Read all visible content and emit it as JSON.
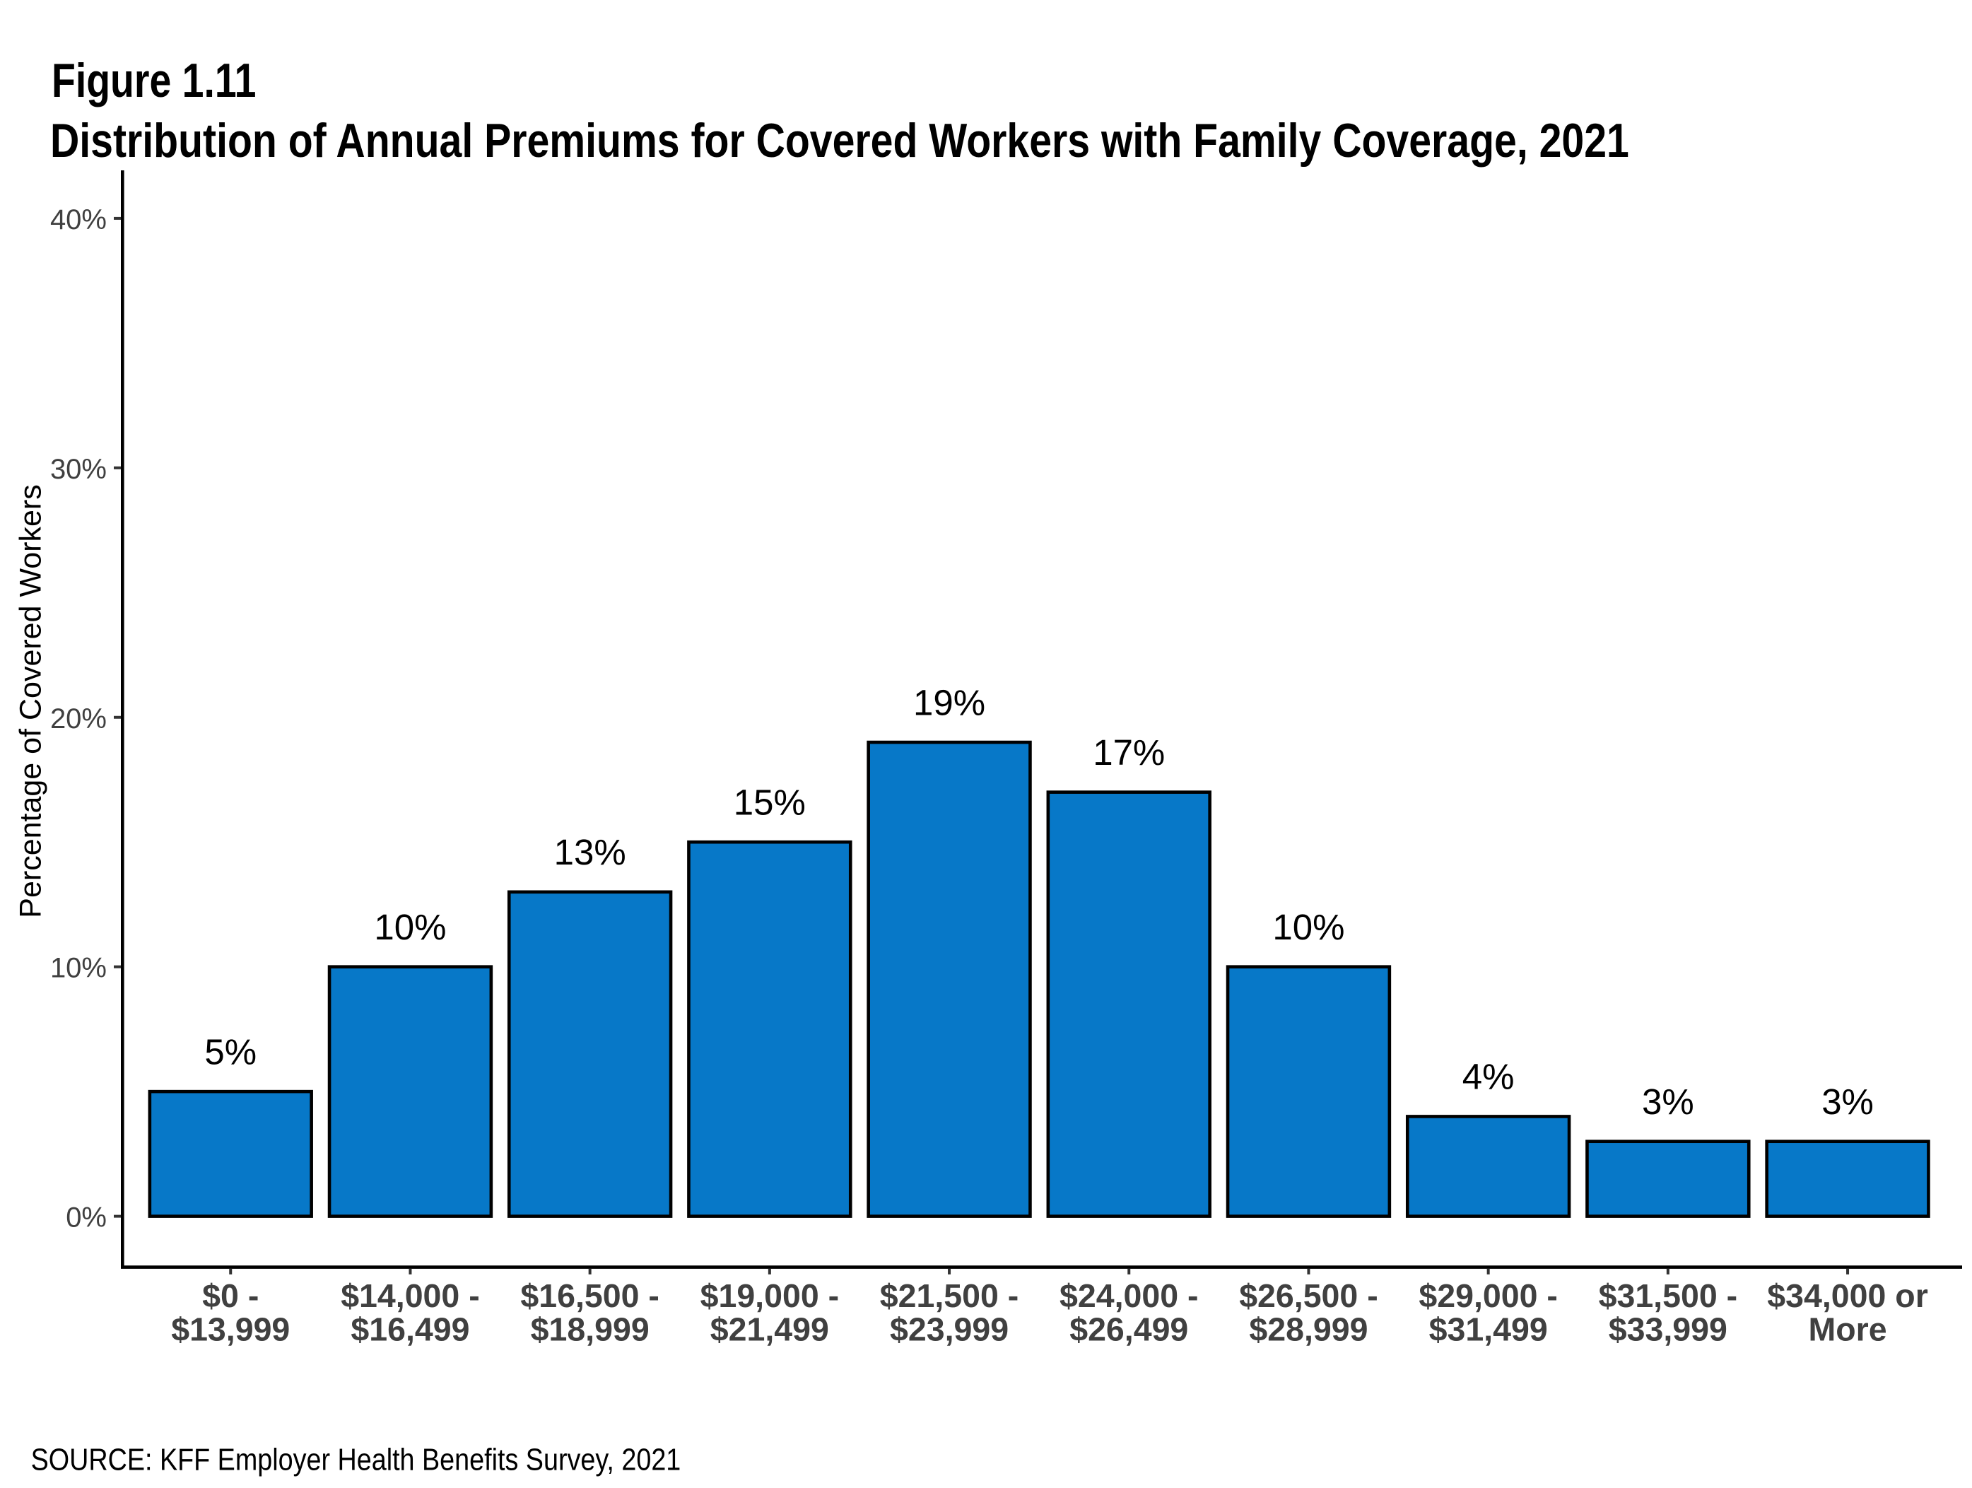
{
  "header": {
    "figure_label": "Figure 1.11",
    "title": "Distribution of Annual Premiums for Covered Workers with Family Coverage, 2021"
  },
  "footer": {
    "source": "SOURCE: KFF Employer Health Benefits Survey, 2021"
  },
  "chart_data": {
    "type": "bar",
    "title": "Distribution of Annual Premiums for Covered Workers with Family Coverage, 2021",
    "categories": [
      [
        "$0 -",
        "$13,999"
      ],
      [
        "$14,000 -",
        "$16,499"
      ],
      [
        "$16,500 -",
        "$18,999"
      ],
      [
        "$19,000 -",
        "$21,499"
      ],
      [
        "$21,500 -",
        "$23,999"
      ],
      [
        "$24,000 -",
        "$26,499"
      ],
      [
        "$26,500 -",
        "$28,999"
      ],
      [
        "$29,000 -",
        "$31,499"
      ],
      [
        "$31,500 -",
        "$33,999"
      ],
      [
        "$34,000 or",
        "More"
      ]
    ],
    "values": [
      5,
      10,
      13,
      15,
      19,
      17,
      10,
      4,
      3,
      3
    ],
    "value_labels": [
      "5%",
      "10%",
      "13%",
      "15%",
      "19%",
      "17%",
      "10%",
      "4%",
      "3%",
      "3%"
    ],
    "xlabel": "",
    "ylabel": "Percentage of Covered Workers",
    "ylim": [
      0,
      40
    ],
    "yticks": [
      0,
      10,
      20,
      30,
      40
    ],
    "ytick_labels": [
      "0%",
      "10%",
      "20%",
      "30%",
      "40%"
    ],
    "grid": false,
    "legend": false,
    "colors": {
      "bar_fill": "#0778C8",
      "bar_border": "#000000",
      "axis_line": "#000000",
      "tick_mark": "#333333",
      "tick_label": "#404040",
      "value_label": "#000000"
    }
  }
}
